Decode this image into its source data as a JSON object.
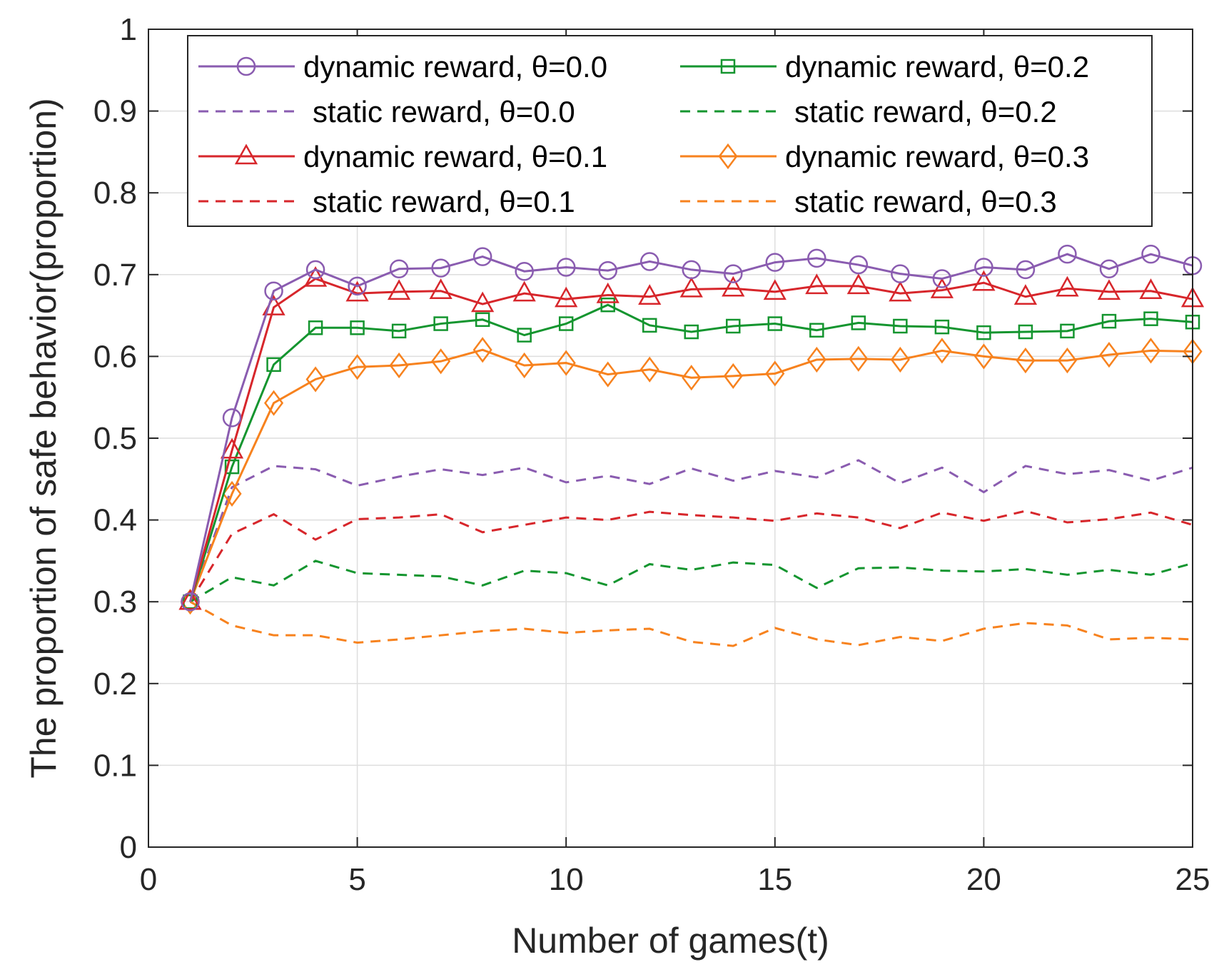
{
  "chart_data": {
    "type": "line",
    "xlabel": "Number of games(t)",
    "ylabel": "The proportion of safe behavior(proportion)",
    "xlim": [
      0,
      25
    ],
    "ylim": [
      0,
      1
    ],
    "grid": true,
    "legend_placement": "top",
    "xticks": [
      "0",
      "5",
      "10",
      "15",
      "20",
      "25"
    ],
    "yticks": [
      "0",
      "0.1",
      "0.2",
      "0.3",
      "0.4",
      "0.5",
      "0.6",
      "0.7",
      "0.8",
      "0.9",
      "1"
    ],
    "x": [
      1,
      2,
      3,
      4,
      5,
      6,
      7,
      8,
      9,
      10,
      11,
      12,
      13,
      14,
      15,
      16,
      17,
      18,
      19,
      20,
      21,
      22,
      23,
      24,
      25
    ],
    "series": [
      {
        "name": "dynamic reward, θ=0.0",
        "color": "#8a5cb0",
        "style": "solid",
        "marker": "circle",
        "values": [
          0.3,
          0.525,
          0.68,
          0.706,
          0.686,
          0.707,
          0.708,
          0.722,
          0.704,
          0.709,
          0.705,
          0.716,
          0.706,
          0.701,
          0.715,
          0.72,
          0.712,
          0.701,
          0.695,
          0.709,
          0.706,
          0.725,
          0.707,
          0.725,
          0.711
        ]
      },
      {
        "name": "static reward, θ=0.0",
        "color": "#8a5cb0",
        "style": "dashed",
        "marker": "none",
        "values": [
          0.3,
          0.44,
          0.466,
          0.462,
          0.442,
          0.453,
          0.462,
          0.455,
          0.464,
          0.446,
          0.454,
          0.444,
          0.463,
          0.448,
          0.46,
          0.452,
          0.473,
          0.445,
          0.464,
          0.434,
          0.466,
          0.456,
          0.461,
          0.448,
          0.464
        ]
      },
      {
        "name": "dynamic reward, θ=0.1",
        "color": "#d7262b",
        "style": "solid",
        "marker": "triangle",
        "values": [
          0.3,
          0.485,
          0.66,
          0.695,
          0.677,
          0.679,
          0.68,
          0.664,
          0.677,
          0.67,
          0.675,
          0.673,
          0.682,
          0.683,
          0.679,
          0.686,
          0.686,
          0.677,
          0.681,
          0.69,
          0.673,
          0.683,
          0.679,
          0.68,
          0.67
        ]
      },
      {
        "name": "static reward, θ=0.1",
        "color": "#d7262b",
        "style": "dashed",
        "marker": "none",
        "values": [
          0.3,
          0.383,
          0.407,
          0.376,
          0.401,
          0.403,
          0.407,
          0.385,
          0.394,
          0.403,
          0.4,
          0.41,
          0.406,
          0.403,
          0.399,
          0.408,
          0.403,
          0.39,
          0.409,
          0.399,
          0.411,
          0.397,
          0.401,
          0.409,
          0.394
        ]
      },
      {
        "name": "dynamic reward, θ=0.2",
        "color": "#14952f",
        "style": "solid",
        "marker": "square",
        "values": [
          0.3,
          0.465,
          0.59,
          0.635,
          0.635,
          0.631,
          0.64,
          0.645,
          0.626,
          0.64,
          0.663,
          0.638,
          0.63,
          0.637,
          0.64,
          0.632,
          0.641,
          0.637,
          0.636,
          0.629,
          0.63,
          0.631,
          0.643,
          0.646,
          0.642
        ]
      },
      {
        "name": "static reward, θ=0.2",
        "color": "#14952f",
        "style": "dashed",
        "marker": "none",
        "values": [
          0.3,
          0.33,
          0.32,
          0.35,
          0.335,
          0.333,
          0.331,
          0.32,
          0.338,
          0.335,
          0.32,
          0.346,
          0.339,
          0.348,
          0.345,
          0.317,
          0.341,
          0.342,
          0.338,
          0.337,
          0.34,
          0.333,
          0.339,
          0.333,
          0.347
        ]
      },
      {
        "name": "dynamic reward, θ=0.3",
        "color": "#f7821e",
        "style": "solid",
        "marker": "diamond",
        "values": [
          0.3,
          0.432,
          0.543,
          0.572,
          0.587,
          0.589,
          0.594,
          0.608,
          0.589,
          0.592,
          0.578,
          0.584,
          0.574,
          0.576,
          0.579,
          0.596,
          0.597,
          0.596,
          0.607,
          0.6,
          0.595,
          0.595,
          0.602,
          0.607,
          0.606
        ]
      },
      {
        "name": "static reward, θ=0.3",
        "color": "#f7821e",
        "style": "dashed",
        "marker": "none",
        "values": [
          0.3,
          0.271,
          0.259,
          0.259,
          0.25,
          0.254,
          0.259,
          0.264,
          0.267,
          0.262,
          0.265,
          0.267,
          0.251,
          0.246,
          0.268,
          0.254,
          0.247,
          0.257,
          0.252,
          0.267,
          0.274,
          0.271,
          0.254,
          0.256,
          0.254
        ]
      }
    ]
  }
}
